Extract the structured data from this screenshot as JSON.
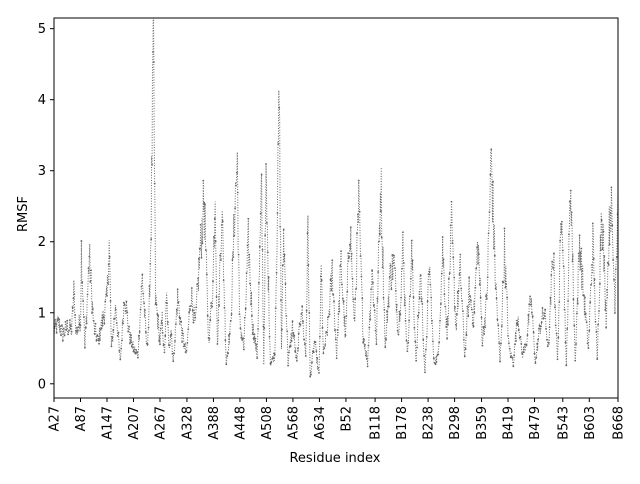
{
  "chart_data": {
    "type": "line",
    "title": "",
    "xlabel": "Residue index",
    "ylabel": "RMSF",
    "ylim": [
      -0.2,
      5.15
    ],
    "yticks": [
      0,
      1,
      2,
      3,
      4,
      5
    ],
    "grid": false,
    "line_style": "dotted",
    "marker": "point",
    "colors": {
      "series": "#666666",
      "axis": "#000000",
      "background": "#ffffff"
    },
    "x_tick_labels": [
      "A27",
      "A87",
      "A147",
      "A207",
      "A267",
      "A328",
      "A388",
      "A448",
      "A508",
      "A568",
      "A634",
      "B52",
      "B118",
      "B178",
      "B238",
      "B298",
      "B359",
      "B419",
      "B479",
      "B543",
      "B603",
      "B668"
    ],
    "x_tick_positions": [
      0,
      60,
      120,
      180,
      240,
      301,
      361,
      421,
      481,
      541,
      601,
      661,
      727,
      787,
      847,
      907,
      968,
      1028,
      1088,
      1152,
      1212,
      1277
    ],
    "x_range": [
      0,
      1277
    ],
    "series": [
      {
        "profile_x": [
          0,
          10,
          20,
          30,
          40,
          45,
          50,
          60,
          62,
          70,
          80,
          90,
          100,
          110,
          120,
          125,
          130,
          140,
          150,
          160,
          170,
          180,
          190,
          200,
          210,
          215,
          220,
          225,
          230,
          240,
          245,
          250,
          255,
          260,
          265,
          270,
          280,
          290,
          300,
          310,
          320,
          330,
          340,
          350,
          360,
          365,
          370,
          380,
          390,
          400,
          410,
          415,
          420,
          430,
          440,
          450,
          460,
          470,
          475,
          480,
          490,
          500,
          510,
          515,
          520,
          530,
          540,
          550,
          560,
          570,
          575,
          580,
          590,
          600,
          605,
          610,
          620,
          630,
          640,
          650,
          660,
          670,
          680,
          690,
          700,
          710,
          720,
          730,
          740,
          750,
          760,
          770,
          780,
          790,
          800,
          810,
          820,
          830,
          840,
          850,
          860,
          870,
          880,
          890,
          900,
          910,
          920,
          930,
          940,
          950,
          960,
          970,
          980,
          990,
          1000,
          1010,
          1020,
          1030,
          1040,
          1050,
          1060,
          1070,
          1080,
          1090,
          1100,
          1110,
          1120,
          1130,
          1140,
          1150,
          1160,
          1170,
          1180,
          1190,
          1200,
          1210,
          1220,
          1230,
          1240,
          1250,
          1260,
          1270,
          1277
        ],
        "profile_y": [
          0.75,
          0.85,
          0.7,
          0.8,
          0.75,
          1.3,
          0.7,
          0.9,
          1.9,
          0.5,
          1.8,
          0.8,
          0.6,
          0.9,
          1.2,
          2.0,
          0.5,
          1.1,
          0.3,
          1.3,
          0.7,
          0.5,
          0.4,
          1.5,
          0.5,
          0.9,
          2.3,
          4.85,
          1.2,
          0.6,
          0.9,
          0.4,
          1.2,
          0.5,
          0.8,
          0.3,
          1.2,
          0.7,
          0.4,
          1.3,
          0.8,
          1.8,
          2.6,
          0.6,
          1.4,
          2.8,
          0.5,
          2.5,
          0.3,
          0.8,
          2.6,
          3.1,
          0.9,
          0.5,
          2.0,
          0.8,
          0.4,
          2.7,
          0.3,
          2.8,
          0.3,
          0.4,
          4.0,
          0.5,
          2.1,
          0.3,
          0.8,
          0.3,
          1.1,
          0.4,
          2.2,
          0.1,
          0.6,
          0.1,
          1.6,
          0.4,
          0.8,
          1.6,
          0.4,
          1.7,
          0.6,
          2.3,
          0.8,
          2.5,
          0.7,
          0.3,
          1.6,
          0.6,
          2.9,
          0.5,
          1.5,
          1.7,
          0.7,
          1.9,
          0.4,
          1.8,
          0.3,
          1.6,
          0.1,
          1.7,
          0.3,
          0.4,
          1.9,
          0.7,
          2.2,
          0.8,
          1.6,
          0.4,
          1.3,
          0.9,
          2.0,
          0.6,
          1.2,
          3.2,
          1.4,
          0.3,
          1.9,
          0.5,
          0.3,
          1.0,
          0.4,
          0.6,
          1.2,
          0.3,
          0.8,
          1.0,
          0.5,
          1.9,
          0.3,
          2.7,
          0.2,
          2.9,
          0.3,
          2.0,
          1.2,
          0.5,
          2.0,
          0.3,
          2.6,
          0.9,
          2.7,
          1.2,
          2.7
        ]
      }
    ]
  }
}
